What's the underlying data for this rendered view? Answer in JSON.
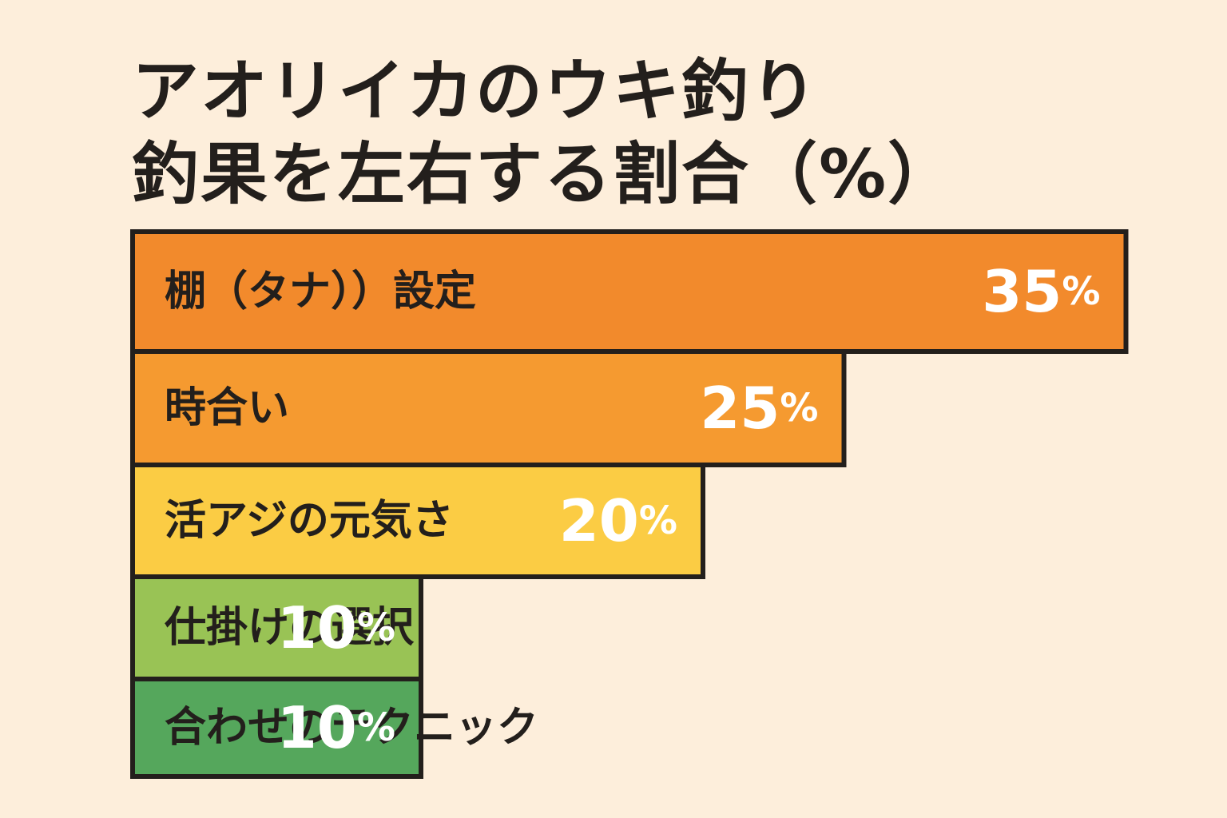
{
  "chart_data": {
    "type": "bar",
    "orientation": "horizontal",
    "title_lines": [
      "アオリイカのウキ釣り",
      "釣果を左右する割合（%）"
    ],
    "categories": [
      "棚（タナ））設定",
      "時合い",
      "活アジの元気さ",
      "仕掛けの選択",
      "合わせのテクニック"
    ],
    "values": [
      35,
      25,
      20,
      10,
      10
    ],
    "value_unit": "%",
    "colors": [
      "#f28a2c",
      "#f59a30",
      "#fbcc44",
      "#99c355",
      "#55a75c"
    ],
    "border_color": "#231f1c",
    "grid": false,
    "legend": "none"
  }
}
